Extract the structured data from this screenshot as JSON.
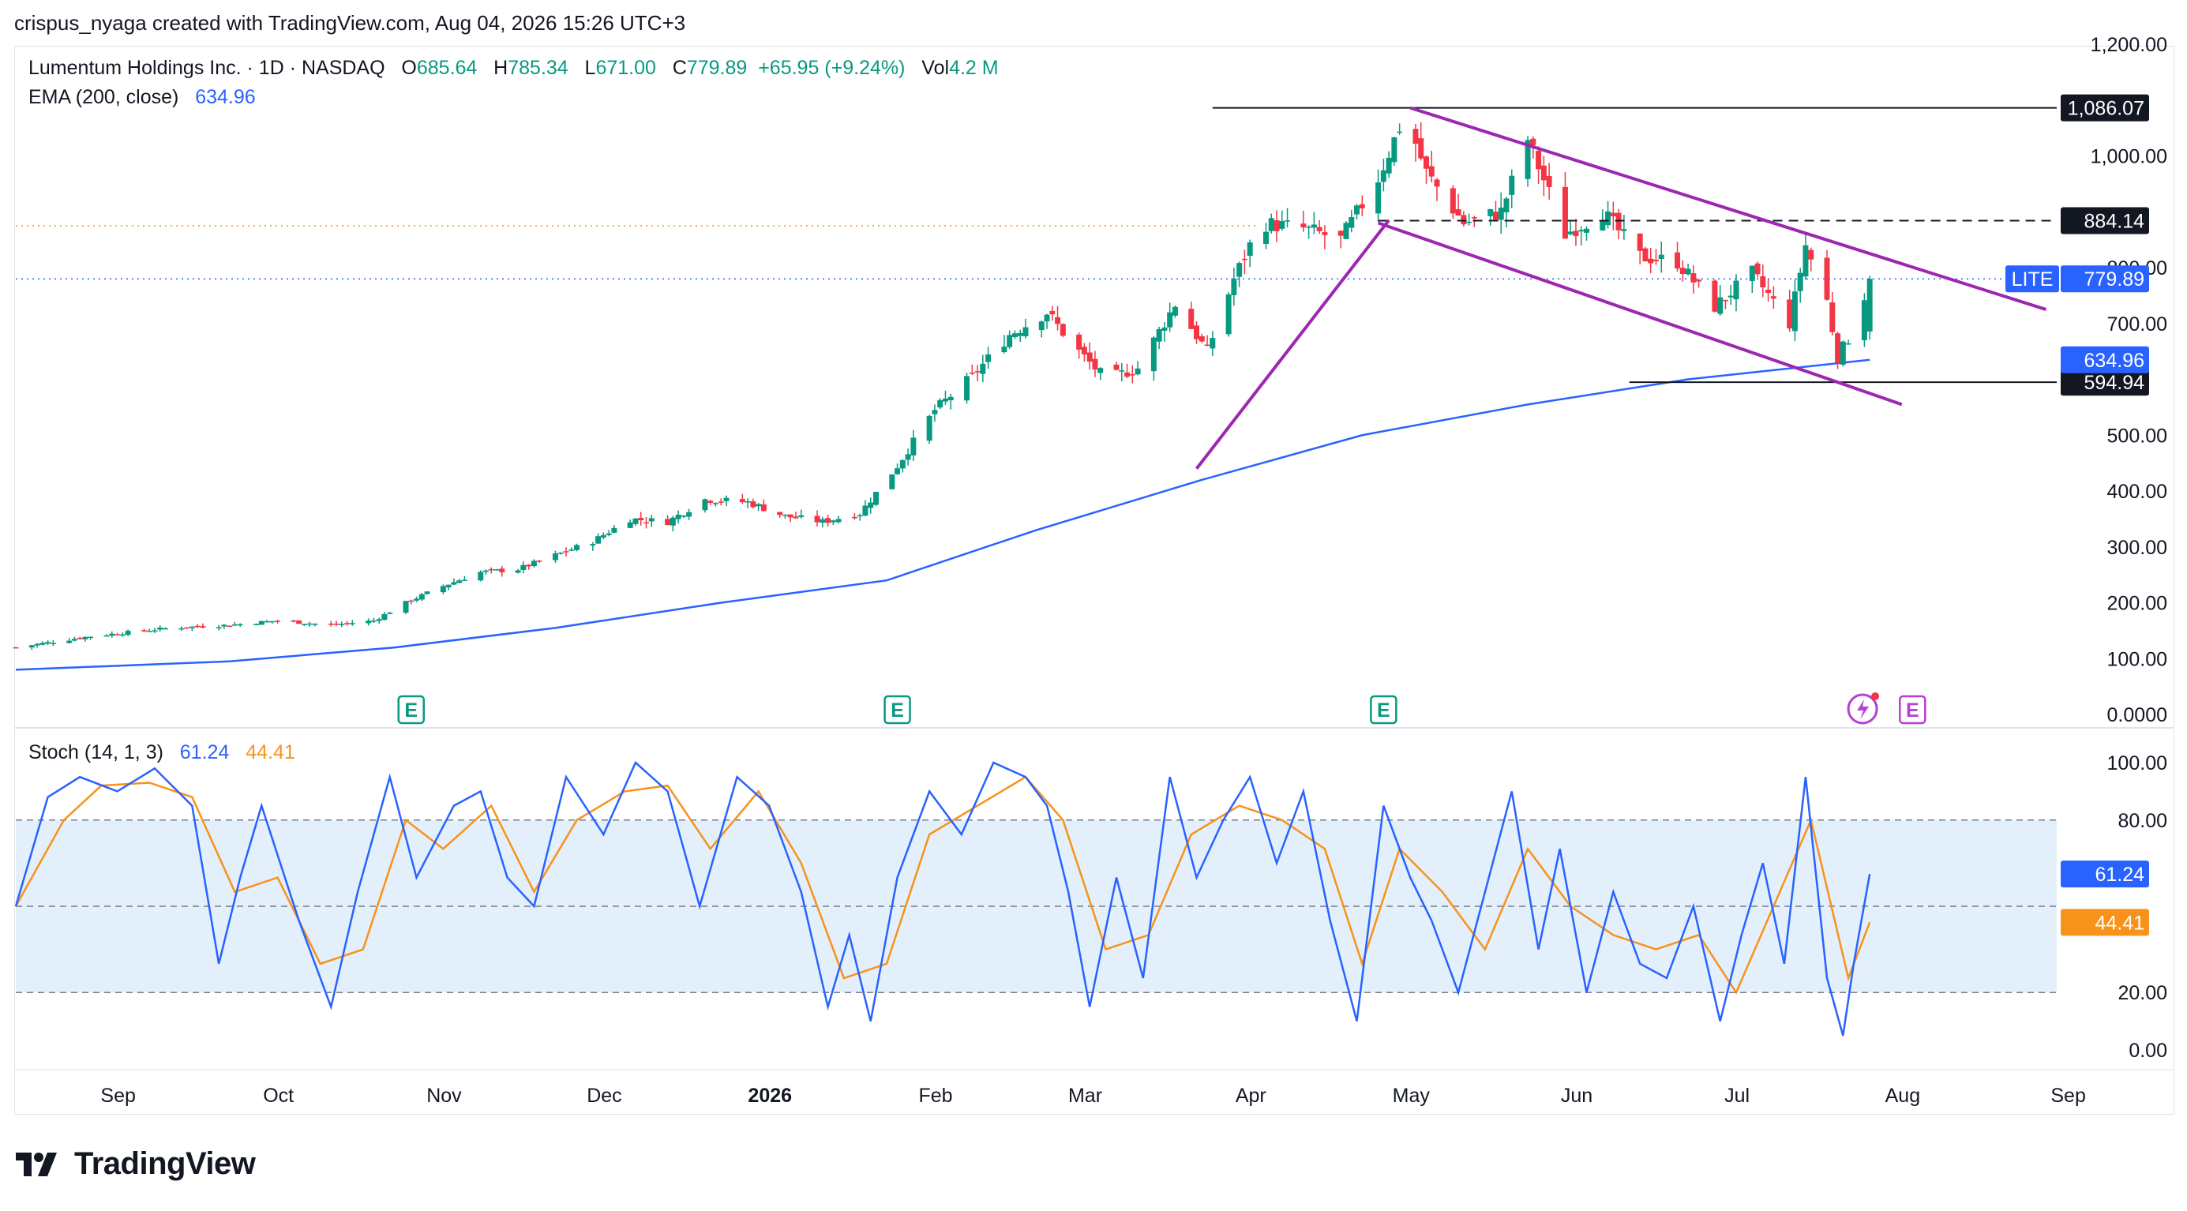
{
  "attribution": "crispus_nyaga created with TradingView.com, Aug 04, 2026 15:26 UTC+3",
  "brand": "TradingView",
  "legend": {
    "symbol": "Lumentum Holdings Inc. · 1D · NASDAQ",
    "o_label": "O",
    "o": "685.64",
    "h_label": "H",
    "h": "785.34",
    "l_label": "L",
    "l": "671.00",
    "c_label": "C",
    "c": "779.89",
    "change": "+65.95 (+9.24%)",
    "vol_label": "Vol",
    "vol": "4.2 M",
    "ema_label": "EMA (200, close)",
    "ema": "634.96"
  },
  "stoch_legend": {
    "label": "Stoch (14, 1, 3)",
    "k": "61.24",
    "d": "44.41"
  },
  "colors": {
    "up": "#089981",
    "down": "#f23645",
    "ema": "#2962ff",
    "k": "#2962ff",
    "d": "#f7931a",
    "pattern": "#9c27b0",
    "band": "#e3f0fb",
    "dotted_price": "#2962ff",
    "dotted_orange": "#f7931a"
  },
  "chart_data": [
    {
      "type": "candlestick",
      "title": "Lumentum Holdings Inc. · 1D · NASDAQ",
      "y_ticks": [
        "1,200.00",
        "1,000.00",
        "800.00",
        "700.00",
        "500.00",
        "400.00",
        "300.00",
        "200.00",
        "100.00",
        "0.0000"
      ],
      "y_tick_values": [
        1200,
        1000,
        800,
        700,
        500,
        400,
        300,
        200,
        100,
        0
      ],
      "ylim": [
        0,
        1200
      ],
      "x_tick_labels": [
        "Sep",
        "Oct",
        "Nov",
        "Dec",
        "2026",
        "Feb",
        "Mar",
        "Apr",
        "May",
        "Jun",
        "Jul",
        "Aug",
        "Sep"
      ],
      "x_tick_dates": [
        "2025-09-01",
        "2025-10-01",
        "2025-11-01",
        "2025-12-01",
        "2026-01-01",
        "2026-02-01",
        "2026-03-01",
        "2026-04-01",
        "2026-05-01",
        "2026-06-01",
        "2026-07-01",
        "2026-08-01",
        "2026-09-01"
      ],
      "x_range": [
        "2025-08-22",
        "2026-09-08"
      ],
      "close_path": [
        [
          "2025-08-22",
          120
        ],
        [
          "2025-09-05",
          140
        ],
        [
          "2025-09-20",
          155
        ],
        [
          "2025-10-01",
          160
        ],
        [
          "2025-10-10",
          168
        ],
        [
          "2025-10-20",
          160
        ],
        [
          "2025-10-28",
          168
        ],
        [
          "2025-11-03",
          200
        ],
        [
          "2025-11-10",
          230
        ],
        [
          "2025-11-17",
          255
        ],
        [
          "2025-11-24",
          260
        ],
        [
          "2025-12-01",
          285
        ],
        [
          "2025-12-08",
          310
        ],
        [
          "2025-12-15",
          350
        ],
        [
          "2025-12-22",
          345
        ],
        [
          "2025-12-29",
          385
        ],
        [
          "2026-01-06",
          380
        ],
        [
          "2026-01-13",
          355
        ],
        [
          "2026-01-20",
          345
        ],
        [
          "2026-01-27",
          360
        ],
        [
          "2026-02-03",
          445
        ],
        [
          "2026-02-10",
          545
        ],
        [
          "2026-02-17",
          605
        ],
        [
          "2026-02-24",
          680
        ],
        [
          "2026-03-03",
          720
        ],
        [
          "2026-03-08",
          660
        ],
        [
          "2026-03-14",
          600
        ],
        [
          "2026-03-20",
          620
        ],
        [
          "2026-03-27",
          735
        ],
        [
          "2026-04-02",
          650
        ],
        [
          "2026-04-07",
          780
        ],
        [
          "2026-04-12",
          880
        ],
        [
          "2026-04-20",
          870
        ],
        [
          "2026-04-27",
          850
        ],
        [
          "2026-05-04",
          960
        ],
        [
          "2026-05-09",
          1075
        ],
        [
          "2026-05-13",
          970
        ],
        [
          "2026-05-20",
          880
        ],
        [
          "2026-05-27",
          900
        ],
        [
          "2026-06-01",
          1030
        ],
        [
          "2026-06-08",
          860
        ],
        [
          "2026-06-15",
          900
        ],
        [
          "2026-06-22",
          820
        ],
        [
          "2026-06-29",
          810
        ],
        [
          "2026-07-06",
          730
        ],
        [
          "2026-07-13",
          790
        ],
        [
          "2026-07-20",
          700
        ],
        [
          "2026-07-23",
          840
        ],
        [
          "2026-07-27",
          740
        ],
        [
          "2026-07-29",
          640
        ],
        [
          "2026-08-01",
          690
        ],
        [
          "2026-08-04",
          779.89
        ]
      ],
      "last_candle": {
        "date": "2026-08-04",
        "open": 685.64,
        "high": 785.34,
        "low": 671.0,
        "close": 779.89
      },
      "ema200_path": [
        [
          "2025-08-22",
          80
        ],
        [
          "2025-10-01",
          95
        ],
        [
          "2025-11-01",
          120
        ],
        [
          "2025-12-01",
          155
        ],
        [
          "2026-01-01",
          200
        ],
        [
          "2026-02-01",
          240
        ],
        [
          "2026-03-01",
          330
        ],
        [
          "2026-04-01",
          420
        ],
        [
          "2026-05-01",
          500
        ],
        [
          "2026-06-01",
          555
        ],
        [
          "2026-07-01",
          600
        ],
        [
          "2026-08-04",
          634.96
        ]
      ],
      "horizontal_levels": [
        {
          "price": 1086.07,
          "label": "1,086.07",
          "style": "solid",
          "from": "2026-04-03"
        },
        {
          "price": 884.14,
          "label": "884.14",
          "style": "dashed",
          "from": "2026-05-04"
        },
        {
          "price": 594.94,
          "label": "594.94",
          "style": "solid",
          "from": "2026-06-20"
        }
      ],
      "trend_lines": [
        {
          "points": [
            [
              "2026-03-31",
              440
            ],
            [
              "2026-05-06",
              885
            ]
          ]
        },
        {
          "points": [
            [
              "2026-05-10",
              1086.07
            ],
            [
              "2026-09-06",
              725
            ]
          ]
        },
        {
          "points": [
            [
              "2026-05-04",
              880
            ],
            [
              "2026-08-10",
              555
            ]
          ]
        }
      ],
      "price_label": {
        "symbol": "LITE",
        "value": "779.89"
      },
      "ema_label": "634.96",
      "earnings_markers": [
        {
          "date": "2025-11-04",
          "label": "E"
        },
        {
          "date": "2026-02-03",
          "label": "E"
        },
        {
          "date": "2026-05-05",
          "label": "E"
        },
        {
          "date": "2026-08-12",
          "label": "E"
        }
      ]
    },
    {
      "type": "line",
      "title": "Stoch (14, 1, 3)",
      "y_ticks": [
        "100.00",
        "80.00",
        "61.24",
        "44.41",
        "20.00",
        "0.00"
      ],
      "y_tick_values": [
        100,
        80,
        20,
        0
      ],
      "ylim": [
        -5,
        105
      ],
      "band": [
        20,
        80
      ],
      "midline": 50,
      "series": [
        {
          "name": "%K",
          "points": [
            [
              "2025-08-22",
              50
            ],
            [
              "2025-08-28",
              88
            ],
            [
              "2025-09-03",
              95
            ],
            [
              "2025-09-10",
              90
            ],
            [
              "2025-09-17",
              98
            ],
            [
              "2025-09-24",
              85
            ],
            [
              "2025-09-29",
              30
            ],
            [
              "2025-10-03",
              60
            ],
            [
              "2025-10-07",
              85
            ],
            [
              "2025-10-14",
              45
            ],
            [
              "2025-10-20",
              15
            ],
            [
              "2025-10-25",
              55
            ],
            [
              "2025-10-31",
              95
            ],
            [
              "2025-11-05",
              60
            ],
            [
              "2025-11-12",
              85
            ],
            [
              "2025-11-17",
              90
            ],
            [
              "2025-11-22",
              60
            ],
            [
              "2025-11-27",
              50
            ],
            [
              "2025-12-03",
              95
            ],
            [
              "2025-12-10",
              75
            ],
            [
              "2025-12-16",
              100
            ],
            [
              "2025-12-22",
              90
            ],
            [
              "2025-12-28",
              50
            ],
            [
              "2026-01-04",
              95
            ],
            [
              "2026-01-10",
              85
            ],
            [
              "2026-01-16",
              55
            ],
            [
              "2026-01-21",
              15
            ],
            [
              "2026-01-25",
              40
            ],
            [
              "2026-01-29",
              10
            ],
            [
              "2026-02-03",
              60
            ],
            [
              "2026-02-09",
              90
            ],
            [
              "2026-02-15",
              75
            ],
            [
              "2026-02-21",
              100
            ],
            [
              "2026-02-27",
              95
            ],
            [
              "2026-03-03",
              85
            ],
            [
              "2026-03-07",
              55
            ],
            [
              "2026-03-11",
              15
            ],
            [
              "2026-03-16",
              60
            ],
            [
              "2026-03-21",
              25
            ],
            [
              "2026-03-26",
              95
            ],
            [
              "2026-03-31",
              60
            ],
            [
              "2026-04-05",
              80
            ],
            [
              "2026-04-10",
              95
            ],
            [
              "2026-04-15",
              65
            ],
            [
              "2026-04-20",
              90
            ],
            [
              "2026-04-25",
              45
            ],
            [
              "2026-04-30",
              10
            ],
            [
              "2026-05-05",
              85
            ],
            [
              "2026-05-10",
              60
            ],
            [
              "2026-05-14",
              45
            ],
            [
              "2026-05-19",
              20
            ],
            [
              "2026-05-24",
              55
            ],
            [
              "2026-05-29",
              90
            ],
            [
              "2026-06-03",
              35
            ],
            [
              "2026-06-07",
              70
            ],
            [
              "2026-06-12",
              20
            ],
            [
              "2026-06-17",
              55
            ],
            [
              "2026-06-22",
              30
            ],
            [
              "2026-06-27",
              25
            ],
            [
              "2026-07-02",
              50
            ],
            [
              "2026-07-07",
              10
            ],
            [
              "2026-07-11",
              40
            ],
            [
              "2026-07-15",
              65
            ],
            [
              "2026-07-19",
              30
            ],
            [
              "2026-07-23",
              95
            ],
            [
              "2026-07-27",
              25
            ],
            [
              "2026-07-30",
              5
            ],
            [
              "2026-08-01",
              30
            ],
            [
              "2026-08-04",
              61.24
            ]
          ]
        },
        {
          "name": "%D",
          "points": [
            [
              "2025-08-22",
              50
            ],
            [
              "2025-08-31",
              80
            ],
            [
              "2025-09-07",
              92
            ],
            [
              "2025-09-16",
              93
            ],
            [
              "2025-09-24",
              88
            ],
            [
              "2025-10-02",
              55
            ],
            [
              "2025-10-10",
              60
            ],
            [
              "2025-10-18",
              30
            ],
            [
              "2025-10-26",
              35
            ],
            [
              "2025-11-03",
              80
            ],
            [
              "2025-11-10",
              70
            ],
            [
              "2025-11-19",
              85
            ],
            [
              "2025-11-27",
              55
            ],
            [
              "2025-12-05",
              80
            ],
            [
              "2025-12-14",
              90
            ],
            [
              "2025-12-22",
              92
            ],
            [
              "2025-12-30",
              70
            ],
            [
              "2026-01-08",
              90
            ],
            [
              "2026-01-16",
              65
            ],
            [
              "2026-01-24",
              25
            ],
            [
              "2026-02-01",
              30
            ],
            [
              "2026-02-09",
              75
            ],
            [
              "2026-02-18",
              85
            ],
            [
              "2026-02-27",
              95
            ],
            [
              "2026-03-06",
              80
            ],
            [
              "2026-03-14",
              35
            ],
            [
              "2026-03-22",
              40
            ],
            [
              "2026-03-30",
              75
            ],
            [
              "2026-04-08",
              85
            ],
            [
              "2026-04-16",
              80
            ],
            [
              "2026-04-24",
              70
            ],
            [
              "2026-05-01",
              30
            ],
            [
              "2026-05-08",
              70
            ],
            [
              "2026-05-16",
              55
            ],
            [
              "2026-05-24",
              35
            ],
            [
              "2026-06-01",
              70
            ],
            [
              "2026-06-09",
              50
            ],
            [
              "2026-06-17",
              40
            ],
            [
              "2026-06-25",
              35
            ],
            [
              "2026-07-03",
              40
            ],
            [
              "2026-07-10",
              20
            ],
            [
              "2026-07-17",
              50
            ],
            [
              "2026-07-24",
              80
            ],
            [
              "2026-07-31",
              25
            ],
            [
              "2026-08-04",
              44.41
            ]
          ]
        }
      ],
      "x_tick_labels": [
        "Sep",
        "Oct",
        "Nov",
        "Dec",
        "2026",
        "Feb",
        "Mar",
        "Apr",
        "May",
        "Jun",
        "Jul",
        "Aug",
        "Sep"
      ],
      "k_label": "61.24",
      "d_label": "44.41"
    }
  ]
}
